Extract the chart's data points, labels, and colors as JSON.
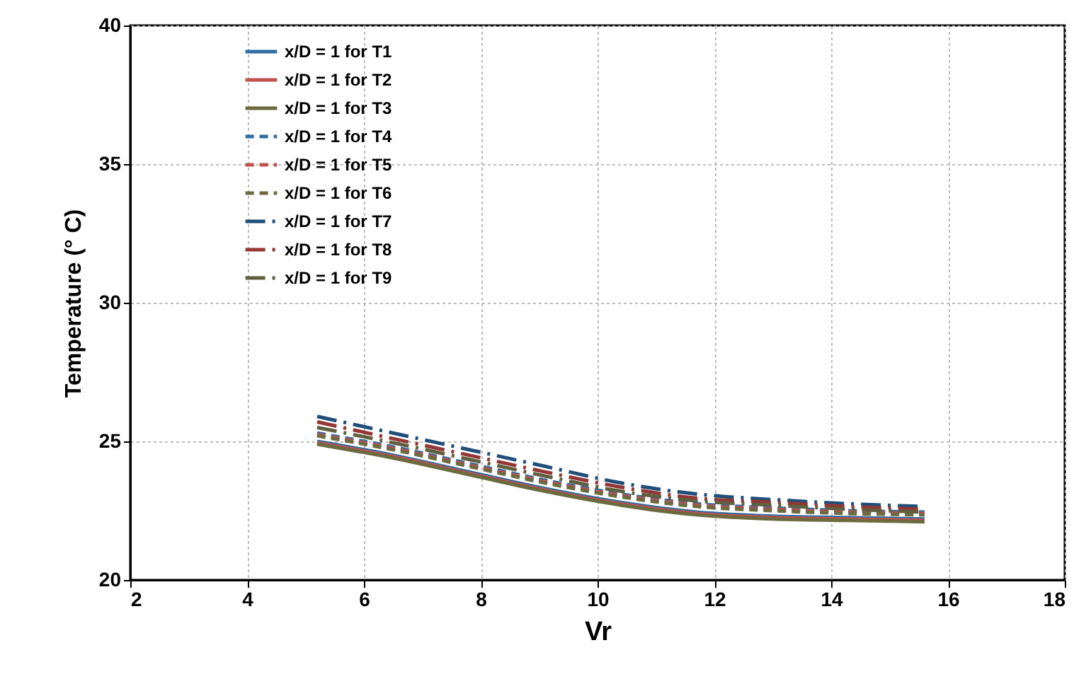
{
  "chart_data": {
    "type": "line",
    "xlabel": "Vr",
    "ylabel": "Temperature (° C)",
    "x": [
      5.2,
      6.5,
      7.8,
      9.1,
      10.4,
      11.7,
      13,
      14.3,
      15.6
    ],
    "series": [
      {
        "name": "x/D = 1 for T1",
        "color": "#2e6da4",
        "line_style": "solid",
        "values": [
          25.0,
          24.5,
          23.9,
          23.3,
          22.8,
          22.45,
          22.3,
          22.25,
          22.2
        ]
      },
      {
        "name": "x/D = 1 for T2",
        "color": "#c0504d",
        "line_style": "solid",
        "values": [
          24.95,
          24.45,
          23.85,
          23.25,
          22.75,
          22.4,
          22.25,
          22.2,
          22.15
        ]
      },
      {
        "name": "x/D = 1 for T3",
        "color": "#6b6b3f",
        "line_style": "solid",
        "values": [
          24.9,
          24.4,
          23.8,
          23.2,
          22.7,
          22.35,
          22.2,
          22.15,
          22.1
        ]
      },
      {
        "name": "x/D = 1 for T4",
        "color": "#2e6da4",
        "line_style": "dashed",
        "values": [
          25.3,
          24.8,
          24.2,
          23.6,
          23.1,
          22.75,
          22.6,
          22.5,
          22.45
        ]
      },
      {
        "name": "x/D = 1 for T5",
        "color": "#c0504d",
        "line_style": "dashed",
        "values": [
          25.25,
          24.75,
          24.15,
          23.55,
          23.05,
          22.7,
          22.55,
          22.45,
          22.4
        ]
      },
      {
        "name": "x/D = 1 for T6",
        "color": "#6b6b3f",
        "line_style": "dashed",
        "values": [
          25.2,
          24.7,
          24.1,
          23.5,
          23.0,
          22.65,
          22.5,
          22.4,
          22.35
        ]
      },
      {
        "name": "x/D = 1 for T7",
        "color": "#1f4e79",
        "line_style": "dashdot",
        "values": [
          25.9,
          25.3,
          24.7,
          24.1,
          23.5,
          23.1,
          22.9,
          22.75,
          22.65
        ]
      },
      {
        "name": "x/D = 1 for T8",
        "color": "#943634",
        "line_style": "dashdot",
        "values": [
          25.7,
          25.1,
          24.5,
          23.9,
          23.35,
          22.95,
          22.8,
          22.65,
          22.55
        ]
      },
      {
        "name": "x/D = 1 for T9",
        "color": "#5f5f3f",
        "line_style": "dashdot",
        "values": [
          25.5,
          24.95,
          24.35,
          23.75,
          23.2,
          22.85,
          22.7,
          22.55,
          22.45
        ]
      }
    ],
    "xlim": [
      2,
      18
    ],
    "xticks": [
      2,
      4,
      6,
      8,
      10,
      12,
      14,
      16,
      18
    ],
    "ylim": [
      20,
      40
    ],
    "yticks": [
      20,
      25,
      30,
      35,
      40
    ],
    "grid": true,
    "legend": "top left",
    "marker": "none"
  }
}
